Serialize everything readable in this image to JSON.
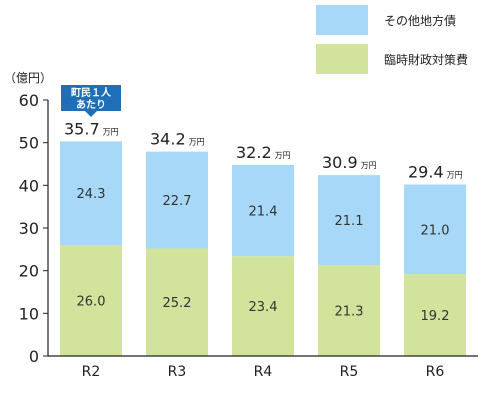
{
  "chart_data": {
    "type": "bar",
    "stacked": true,
    "categories": [
      "R2",
      "R3",
      "R4",
      "R5",
      "R6"
    ],
    "series": [
      {
        "name": "臨時財政対策費",
        "values": [
          26.0,
          25.2,
          23.4,
          21.3,
          19.2
        ],
        "color": "#d2e49c"
      },
      {
        "name": "その他地方債",
        "values": [
          24.3,
          22.7,
          21.4,
          21.1,
          21.0
        ],
        "color": "#a8d8f7"
      }
    ],
    "per_capita": {
      "badge_lines": [
        "町民１人",
        "あたり"
      ],
      "values": [
        "35.7",
        "34.2",
        "32.2",
        "30.9",
        "29.4"
      ],
      "unit": "万円",
      "badge_color": "#1f6fb8"
    },
    "value_labels": [
      [
        "26.0",
        "25.2",
        "23.4",
        "21.3",
        "19.2"
      ],
      [
        "24.3",
        "22.7",
        "21.4",
        "21.1",
        "21.0"
      ]
    ],
    "y_unit_label": "（億円）",
    "yticks": [
      "0",
      "10",
      "20",
      "30",
      "40",
      "50",
      "60"
    ],
    "ylim": [
      0,
      60
    ],
    "legend_position": "top-right",
    "legend_order": [
      "その他地方債",
      "臨時財政対策費"
    ],
    "grid": false
  }
}
